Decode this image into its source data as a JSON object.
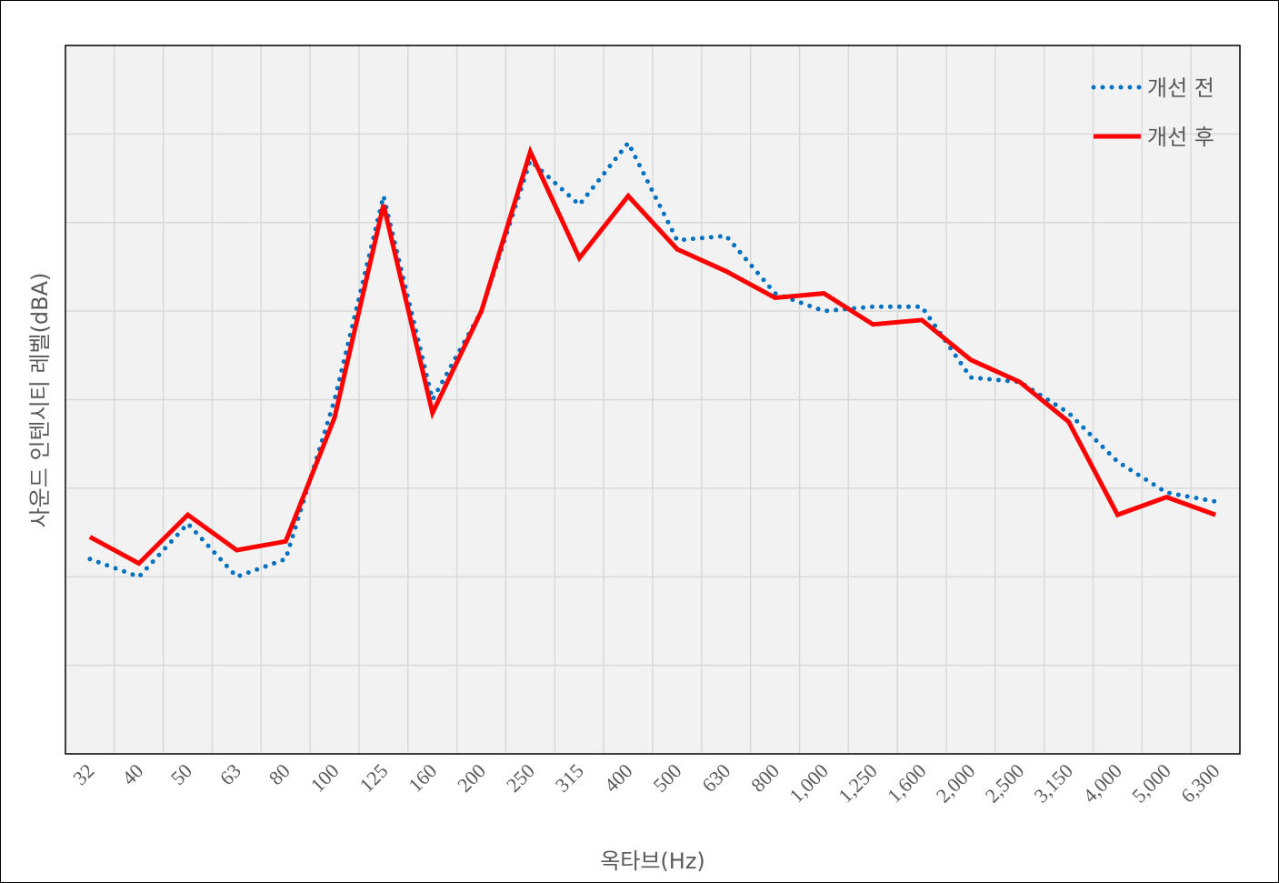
{
  "chart_data": {
    "type": "line",
    "title": "",
    "xlabel": "옥타브(Hz)",
    "ylabel": "사운드 인텐시티 레벨(dBA)",
    "ylim": [
      0,
      80
    ],
    "y_tick_labels_shown": false,
    "grid": true,
    "legend_position": "top-right",
    "categories": [
      "32",
      "40",
      "50",
      "63",
      "80",
      "100",
      "125",
      "160",
      "200",
      "250",
      "315",
      "400",
      "500",
      "630",
      "800",
      "1,000",
      "1,250",
      "1,600",
      "2,000",
      "2,500",
      "3,150",
      "4,000",
      "5,000",
      "6,300"
    ],
    "series": [
      {
        "name": "개선 전",
        "color": "#0070C0",
        "style": "dotted",
        "values": [
          22,
          20,
          26,
          20,
          22,
          40,
          63,
          40,
          50,
          67,
          62,
          69,
          58,
          58.5,
          52,
          50,
          50.5,
          50.5,
          42.5,
          42,
          38.5,
          33,
          29.5,
          28.5
        ]
      },
      {
        "name": "개선 후",
        "color": "#FF0000",
        "style": "solid",
        "values": [
          24.5,
          21.5,
          27,
          23,
          24,
          38,
          62,
          38.5,
          50,
          68,
          56,
          63,
          57,
          54.5,
          51.5,
          52,
          48.5,
          49,
          44.5,
          42,
          37.5,
          27,
          29,
          27
        ]
      }
    ]
  }
}
